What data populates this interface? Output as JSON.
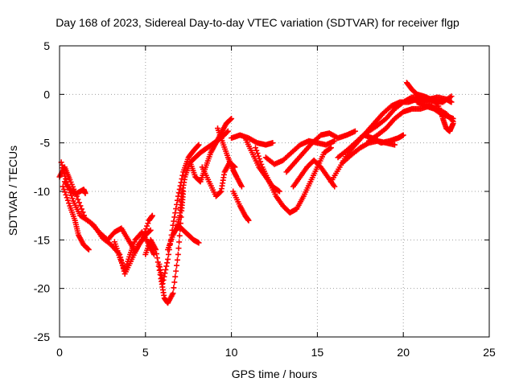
{
  "chart_data": {
    "type": "scatter",
    "title": "Day 168 of 2023, Sidereal Day-to-day VTEC variation (SDTVAR) for receiver flgp",
    "xlabel": "GPS time / hours",
    "ylabel": "SDTVAR / TECUs",
    "xlim": [
      0,
      25
    ],
    "ylim": [
      -25,
      5
    ],
    "xticks": [
      0,
      5,
      10,
      15,
      20,
      25
    ],
    "yticks": [
      -25,
      -20,
      -15,
      -10,
      -5,
      0,
      5
    ],
    "grid": true,
    "marker": "plus",
    "color": "#ff0000",
    "series": [
      {
        "points": [
          [
            0,
            -8.5
          ],
          [
            0.3,
            -7.5
          ],
          [
            0.6,
            -8.8
          ],
          [
            1.0,
            -10.5
          ],
          [
            1.5,
            -12.8
          ],
          [
            2.0,
            -13.5
          ],
          [
            2.5,
            -14.8
          ],
          [
            3.0,
            -15.5
          ],
          [
            3.5,
            -16.5
          ],
          [
            3.8,
            -18.5
          ],
          [
            4.2,
            -17.0
          ],
          [
            4.6,
            -15.5
          ],
          [
            5.0,
            -14.5
          ],
          [
            5.3,
            -14.0
          ]
        ]
      },
      {
        "points": [
          [
            0.1,
            -7.0
          ],
          [
            0.4,
            -9.0
          ],
          [
            0.8,
            -11.0
          ],
          [
            1.2,
            -12.5
          ],
          [
            1.8,
            -13.2
          ],
          [
            2.3,
            -14.2
          ],
          [
            2.8,
            -15.0
          ],
          [
            3.2,
            -14.2
          ],
          [
            3.6,
            -13.8
          ],
          [
            4.0,
            -15.0
          ],
          [
            4.4,
            -16.2
          ],
          [
            4.8,
            -15.0
          ],
          [
            5.2,
            -13.0
          ],
          [
            5.4,
            -12.5
          ]
        ]
      },
      {
        "points": [
          [
            0.2,
            -9.5
          ],
          [
            0.6,
            -11.5
          ],
          [
            0.9,
            -13.0
          ],
          [
            1.1,
            -14.5
          ],
          [
            1.4,
            -15.5
          ],
          [
            1.7,
            -16.0
          ]
        ]
      },
      {
        "points": [
          [
            0.3,
            -9.0
          ],
          [
            0.7,
            -10.0
          ],
          [
            1.0,
            -10.2
          ],
          [
            1.4,
            -9.8
          ],
          [
            1.5,
            -10.2
          ]
        ]
      },
      {
        "points": [
          [
            3.2,
            -15.2
          ],
          [
            3.5,
            -16.8
          ],
          [
            3.8,
            -18.2
          ],
          [
            4.1,
            -16.5
          ],
          [
            4.4,
            -15.0
          ],
          [
            4.8,
            -14.2
          ],
          [
            5.2,
            -15.5
          ],
          [
            5.5,
            -16.5
          ]
        ]
      },
      {
        "points": [
          [
            5.0,
            -16.5
          ],
          [
            5.3,
            -15.0
          ],
          [
            5.6,
            -16.0
          ],
          [
            5.9,
            -19.0
          ],
          [
            6.1,
            -21.0
          ],
          [
            6.3,
            -21.5
          ],
          [
            6.6,
            -20.5
          ],
          [
            6.9,
            -16.5
          ],
          [
            7.1,
            -12.0
          ],
          [
            7.2,
            -10.0
          ]
        ]
      },
      {
        "points": [
          [
            5.8,
            -17.5
          ],
          [
            6.0,
            -19.5
          ],
          [
            6.3,
            -17.0
          ],
          [
            6.6,
            -13.5
          ],
          [
            6.9,
            -10.5
          ],
          [
            7.2,
            -8.0
          ],
          [
            7.5,
            -6.5
          ],
          [
            7.8,
            -5.8
          ],
          [
            8.1,
            -5.2
          ]
        ]
      },
      {
        "points": [
          [
            6.3,
            -16.0
          ],
          [
            6.6,
            -14.5
          ],
          [
            6.9,
            -13.5
          ],
          [
            7.2,
            -14.0
          ],
          [
            7.5,
            -14.5
          ],
          [
            7.8,
            -15.0
          ],
          [
            8.1,
            -15.3
          ]
        ]
      },
      {
        "points": [
          [
            6.8,
            -14.0
          ],
          [
            7.0,
            -12.5
          ],
          [
            7.1,
            -10.5
          ],
          [
            7.3,
            -8.5
          ],
          [
            7.6,
            -7.0
          ],
          [
            7.9,
            -6.5
          ],
          [
            8.2,
            -6.0
          ],
          [
            8.6,
            -5.5
          ],
          [
            9.0,
            -5.0
          ],
          [
            9.4,
            -4.5
          ],
          [
            9.8,
            -3.8
          ]
        ]
      },
      {
        "points": [
          [
            7.6,
            -7.0
          ],
          [
            7.9,
            -8.5
          ],
          [
            8.2,
            -9.0
          ],
          [
            8.5,
            -7.5
          ],
          [
            8.8,
            -6.0
          ],
          [
            9.1,
            -5.0
          ],
          [
            9.4,
            -4.0
          ],
          [
            9.7,
            -3.0
          ],
          [
            10.0,
            -2.5
          ]
        ]
      },
      {
        "points": [
          [
            8.3,
            -7.5
          ],
          [
            8.7,
            -9.0
          ],
          [
            9.1,
            -10.5
          ],
          [
            9.4,
            -10.0
          ],
          [
            9.6,
            -8.0
          ],
          [
            9.9,
            -7.0
          ],
          [
            10.2,
            -7.5
          ]
        ]
      },
      {
        "points": [
          [
            9.2,
            -3.5
          ],
          [
            9.5,
            -5.0
          ],
          [
            9.8,
            -6.5
          ],
          [
            10.1,
            -7.8
          ],
          [
            10.3,
            -8.5
          ],
          [
            10.6,
            -9.5
          ]
        ]
      },
      {
        "points": [
          [
            10.0,
            -4.5
          ],
          [
            10.5,
            -4.2
          ],
          [
            11.0,
            -4.5
          ],
          [
            11.5,
            -5.0
          ],
          [
            12.0,
            -5.2
          ],
          [
            12.4,
            -5.0
          ]
        ]
      },
      {
        "points": [
          [
            10.8,
            -4.5
          ],
          [
            11.2,
            -6.0
          ],
          [
            11.6,
            -7.5
          ],
          [
            12.0,
            -8.5
          ],
          [
            12.4,
            -9.5
          ],
          [
            12.8,
            -10.0
          ]
        ]
      },
      {
        "points": [
          [
            10.1,
            -10.0
          ],
          [
            10.5,
            -11.5
          ],
          [
            10.8,
            -12.5
          ],
          [
            11.0,
            -13.0
          ]
        ]
      },
      {
        "points": [
          [
            11.4,
            -5.5
          ],
          [
            11.8,
            -7.5
          ],
          [
            12.2,
            -9.0
          ],
          [
            12.6,
            -10.5
          ],
          [
            13.0,
            -11.5
          ],
          [
            13.4,
            -12.2
          ],
          [
            13.8,
            -11.8
          ],
          [
            14.2,
            -10.5
          ],
          [
            14.6,
            -9.0
          ],
          [
            15.0,
            -7.5
          ],
          [
            15.4,
            -6.0
          ],
          [
            15.8,
            -5.5
          ]
        ]
      },
      {
        "points": [
          [
            12.0,
            -6.5
          ],
          [
            12.5,
            -7.2
          ],
          [
            13.0,
            -6.8
          ],
          [
            13.5,
            -6.0
          ],
          [
            14.0,
            -5.2
          ],
          [
            14.5,
            -4.8
          ],
          [
            15.0,
            -5.0
          ],
          [
            15.5,
            -5.2
          ],
          [
            16.0,
            -4.8
          ]
        ]
      },
      {
        "points": [
          [
            13.2,
            -8.0
          ],
          [
            13.7,
            -7.0
          ],
          [
            14.2,
            -6.0
          ],
          [
            14.7,
            -5.0
          ],
          [
            15.2,
            -4.2
          ],
          [
            15.7,
            -4.0
          ],
          [
            16.2,
            -4.5
          ],
          [
            16.7,
            -4.2
          ],
          [
            17.2,
            -3.8
          ]
        ]
      },
      {
        "points": [
          [
            13.6,
            -9.5
          ],
          [
            14.0,
            -8.5
          ],
          [
            14.4,
            -7.5
          ],
          [
            14.8,
            -6.8
          ],
          [
            15.2,
            -7.5
          ],
          [
            15.6,
            -8.5
          ],
          [
            16.0,
            -9.5
          ]
        ]
      },
      {
        "points": [
          [
            15.8,
            -9.0
          ],
          [
            16.3,
            -7.5
          ],
          [
            16.8,
            -6.0
          ],
          [
            17.3,
            -5.0
          ],
          [
            17.8,
            -4.0
          ],
          [
            18.3,
            -3.0
          ],
          [
            18.8,
            -2.0
          ],
          [
            19.3,
            -1.2
          ],
          [
            19.8,
            -0.8
          ],
          [
            20.3,
            -0.8
          ],
          [
            20.8,
            -0.5
          ],
          [
            21.3,
            -0.8
          ],
          [
            21.8,
            -0.7
          ],
          [
            22.3,
            -0.8
          ],
          [
            22.8,
            -0.2
          ]
        ]
      },
      {
        "points": [
          [
            16.2,
            -6.5
          ],
          [
            16.7,
            -5.8
          ],
          [
            17.2,
            -5.0
          ],
          [
            17.7,
            -4.2
          ],
          [
            18.2,
            -4.5
          ],
          [
            18.7,
            -5.0
          ],
          [
            19.2,
            -4.8
          ],
          [
            19.7,
            -4.5
          ],
          [
            20.0,
            -4.2
          ]
        ]
      },
      {
        "points": [
          [
            16.5,
            -7.0
          ],
          [
            17.0,
            -6.2
          ],
          [
            17.5,
            -5.5
          ],
          [
            18.0,
            -5.0
          ],
          [
            18.5,
            -4.8
          ],
          [
            19.0,
            -5.0
          ],
          [
            19.5,
            -5.2
          ]
        ]
      },
      {
        "points": [
          [
            17.5,
            -4.5
          ],
          [
            18.0,
            -3.8
          ],
          [
            18.5,
            -3.2
          ],
          [
            19.0,
            -2.5
          ],
          [
            19.5,
            -1.5
          ],
          [
            20.0,
            -0.8
          ],
          [
            20.5,
            -0.3
          ],
          [
            21.0,
            -0.3
          ],
          [
            21.5,
            -0.5
          ],
          [
            22.0,
            -0.3
          ],
          [
            22.5,
            -0.5
          ],
          [
            22.8,
            -0.8
          ]
        ]
      },
      {
        "points": [
          [
            18.0,
            -4.8
          ],
          [
            18.5,
            -4.2
          ],
          [
            19.0,
            -3.5
          ],
          [
            19.5,
            -2.5
          ],
          [
            20.0,
            -1.8
          ],
          [
            20.5,
            -1.5
          ],
          [
            21.0,
            -1.5
          ],
          [
            21.5,
            -1.2
          ],
          [
            22.0,
            -1.5
          ],
          [
            22.5,
            -2.0
          ],
          [
            22.9,
            -2.8
          ]
        ]
      },
      {
        "points": [
          [
            20.2,
            1.2
          ],
          [
            20.5,
            0.5
          ],
          [
            20.8,
            0.0
          ],
          [
            21.2,
            -0.2
          ],
          [
            21.6,
            -0.5
          ],
          [
            22.0,
            -1.0
          ],
          [
            22.3,
            -2.5
          ],
          [
            22.5,
            -3.5
          ],
          [
            22.7,
            -3.8
          ],
          [
            22.9,
            -3.0
          ]
        ]
      },
      {
        "points": [
          [
            20.8,
            -0.8
          ],
          [
            21.3,
            -1.2
          ],
          [
            21.8,
            -1.5
          ],
          [
            22.2,
            -2.0
          ],
          [
            22.5,
            -2.2
          ],
          [
            22.9,
            -2.5
          ]
        ]
      }
    ]
  }
}
